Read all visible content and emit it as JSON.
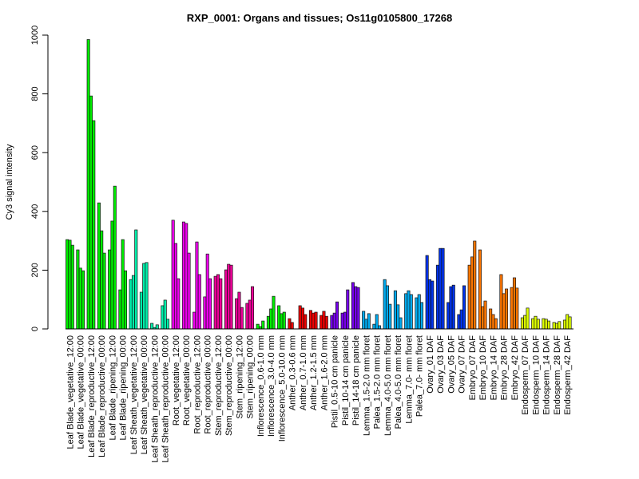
{
  "chart_data": {
    "type": "bar",
    "title": "RXP_0001: Organs and tissues; Os11g0105800_17268",
    "xlabel": "",
    "ylabel": "Cy3 signal intensity",
    "ylim": [
      0,
      1000
    ],
    "yticks": [
      0,
      200,
      400,
      600,
      800,
      1000
    ],
    "grid": false,
    "categories": [
      {
        "label": "Leaf Blade_vegetative_12:00",
        "values": [
          304,
          302,
          285
        ],
        "color": "#00ee00"
      },
      {
        "label": "Leaf Blade_vegetative_00:00",
        "values": [
          269,
          207,
          198
        ],
        "color": "#00ee00"
      },
      {
        "label": "Leaf Blade_reproductive_12:00",
        "values": [
          985,
          793,
          709
        ],
        "color": "#00ee00"
      },
      {
        "label": "Leaf Blade_reproductive_00:00",
        "values": [
          429,
          334,
          258
        ],
        "color": "#00ee00"
      },
      {
        "label": "Leaf Blade_ripening_12:00",
        "values": [
          269,
          367,
          486
        ],
        "color": "#00ee00"
      },
      {
        "label": "Leaf Blade_ripening_00:00",
        "values": [
          133,
          304,
          198
        ],
        "color": "#00ee00"
      },
      {
        "label": "Leaf Sheath_vegetative_12:00",
        "values": [
          168,
          182,
          337
        ],
        "color": "#00eeaa"
      },
      {
        "label": "Leaf Sheath_vegetative_00:00",
        "values": [
          125,
          223,
          226
        ],
        "color": "#00eeaa"
      },
      {
        "label": "Leaf Sheath_reproductive_12:00",
        "values": [
          19,
          5,
          14
        ],
        "color": "#00eeaa"
      },
      {
        "label": "Leaf Sheath_reproductive_00:00",
        "values": [
          79,
          98,
          33
        ],
        "color": "#00eeaa"
      },
      {
        "label": "Root_vegetative_12:00",
        "values": [
          370,
          291,
          171
        ],
        "color": "#ee00ee"
      },
      {
        "label": "Root_vegetative_00:00",
        "values": [
          364,
          359,
          258
        ],
        "color": "#ee00ee"
      },
      {
        "label": "Root_reproductive_12:00",
        "values": [
          57,
          296,
          185
        ],
        "color": "#ee00ee"
      },
      {
        "label": "Root_reproductive_00:00",
        "values": [
          109,
          255,
          171
        ],
        "color": "#ee00ee"
      },
      {
        "label": "Stem_reproductive_12:00",
        "values": [
          179,
          185,
          171
        ],
        "color": "#ee0099"
      },
      {
        "label": "Stem_reproductive_00:00",
        "values": [
          201,
          220,
          217
        ],
        "color": "#ee0099"
      },
      {
        "label": "Stem_ripening_12:00",
        "values": [
          103,
          125,
          73
        ],
        "color": "#ee0099"
      },
      {
        "label": "Stem_ripening_00:00",
        "values": [
          87,
          98,
          144
        ],
        "color": "#ee0099"
      },
      {
        "label": "Inflorescence_0.6-1.0 mm",
        "values": [
          16,
          8,
          27
        ],
        "color": "#00ee00"
      },
      {
        "label": "Inflorescence_3.0-4.0 mm",
        "values": [
          43,
          68,
          111
        ],
        "color": "#00ee00"
      },
      {
        "label": "Inflorescence_5.0-10.0 mm",
        "values": [
          79,
          52,
          57
        ],
        "color": "#00ee00"
      },
      {
        "label": "Anther_0.3-0.6 mm",
        "values": [
          35,
          22
        ],
        "color": "#ee0000"
      },
      {
        "label": "Anther_0.7-1.0 mm",
        "values": [
          79,
          71,
          49
        ],
        "color": "#ee0000"
      },
      {
        "label": "Anther_1.2-1.5 mm",
        "values": [
          63,
          54,
          57
        ],
        "color": "#ee0000"
      },
      {
        "label": "Anther_1.6-2.0 mm",
        "values": [
          46,
          60,
          43
        ],
        "color": "#ee0000"
      },
      {
        "label": "Pistil_0.5-10 cm panicle",
        "values": [
          46,
          54,
          92
        ],
        "color": "#7700ee"
      },
      {
        "label": "Pistil_10-14 cm panicle",
        "values": [
          54,
          57,
          133
        ],
        "color": "#7700ee"
      },
      {
        "label": "Pistil_14-18 cm panicle",
        "values": [
          158,
          144,
          141
        ],
        "color": "#7700ee"
      },
      {
        "label": "Lemma_1.5-2.0 mm floret",
        "values": [
          60,
          33,
          52
        ],
        "color": "#00aaee"
      },
      {
        "label": "Palea_1.5-2.0 mm floret",
        "values": [
          16,
          49,
          11
        ],
        "color": "#00aaee"
      },
      {
        "label": "Lemma_4.0-5.0 mm floret",
        "values": [
          168,
          147,
          84
        ],
        "color": "#00aaee"
      },
      {
        "label": "Palea_4.0-5.0 mm floret",
        "values": [
          130,
          82,
          38
        ],
        "color": "#00aaee"
      },
      {
        "label": "Lemma_7.0- mm floret",
        "values": [
          120,
          130,
          117
        ],
        "color": "#00aaee"
      },
      {
        "label": "Palea_7.0- mm floret",
        "values": [
          106,
          117,
          90
        ],
        "color": "#00aaee"
      },
      {
        "label": "Ovary_01 DAF",
        "values": [
          250,
          168,
          163
        ],
        "color": "#0033ee"
      },
      {
        "label": "Ovary_03 DAF",
        "values": [
          217,
          274,
          274
        ],
        "color": "#0033ee"
      },
      {
        "label": "Ovary_05 DAF",
        "values": [
          90,
          144,
          149
        ],
        "color": "#0033ee"
      },
      {
        "label": "Ovary_07 DAF",
        "values": [
          49,
          65,
          147
        ],
        "color": "#0033ee"
      },
      {
        "label": "Embryo_07 DAF",
        "values": [
          217,
          245,
          299
        ],
        "color": "#ff7700"
      },
      {
        "label": "Embryo_10 DAF",
        "values": [
          269,
          76,
          95
        ],
        "color": "#ff7700"
      },
      {
        "label": "Embryo_14 DAF",
        "values": [
          68,
          49,
          35
        ],
        "color": "#ff7700"
      },
      {
        "label": "Embryo_28 DAF",
        "values": [
          185,
          120,
          136
        ],
        "color": "#ff7700"
      },
      {
        "label": "Embryo_42 DAF",
        "values": [
          141,
          174,
          139
        ],
        "color": "#ff7700"
      },
      {
        "label": "Endosperm_07 DAF",
        "values": [
          38,
          46,
          71
        ],
        "color": "#ddff00"
      },
      {
        "label": "Endosperm_10 DAF",
        "values": [
          35,
          43,
          33
        ],
        "color": "#ddff00"
      },
      {
        "label": "Endosperm_14 DAF",
        "values": [
          35,
          33,
          27
        ],
        "color": "#ddff00"
      },
      {
        "label": "Endosperm_28 DAF",
        "values": [
          22,
          19,
          25
        ],
        "color": "#ddff00"
      },
      {
        "label": "Endosperm_42 DAF",
        "values": [
          30,
          49,
          41
        ],
        "color": "#ddff00"
      }
    ]
  }
}
